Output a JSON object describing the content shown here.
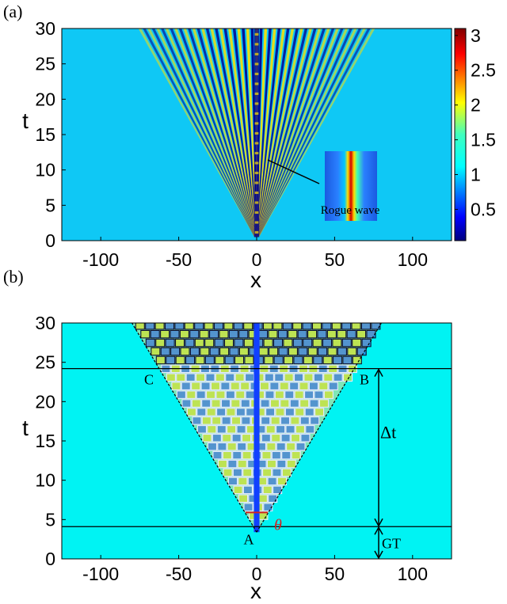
{
  "chart_data": [
    {
      "type": "heatmap",
      "panel_label": "(a)",
      "xlabel": "x",
      "ylabel": "t",
      "xlim": [
        -125,
        125
      ],
      "ylim": [
        0,
        30
      ],
      "xticks": [
        -100,
        -50,
        0,
        50,
        100
      ],
      "yticks": [
        0,
        5,
        10,
        15,
        20,
        25,
        30
      ],
      "colorbar": {
        "min": 0.05,
        "max": 3.1,
        "ticks": [
          0.5,
          1,
          1.5,
          2,
          2.5,
          3
        ]
      },
      "background_value": 1,
      "wedge_half_width_at_t30": 75,
      "inset": {
        "label": "Rogue wave",
        "arrow_from": [
          5,
          14
        ]
      }
    },
    {
      "type": "heatmap",
      "panel_label": "(b)",
      "xlabel": "x",
      "ylabel": "t",
      "xlim": [
        -125,
        125
      ],
      "ylim": [
        0,
        30
      ],
      "xticks": [
        -100,
        -50,
        0,
        50,
        100
      ],
      "yticks": [
        0,
        5,
        10,
        15,
        20,
        25,
        30
      ],
      "lines_t": [
        4.1,
        24.2
      ],
      "points": [
        {
          "label": "A",
          "x": 0,
          "t": 4.1
        },
        {
          "label": "B",
          "x": 63,
          "t": 24.2
        },
        {
          "label": "C",
          "x": -63,
          "t": 24.2
        }
      ],
      "wedge_half_width_at_t30": 80,
      "annotations": {
        "delta_t": "Δt",
        "gt": "GT",
        "theta": "θ"
      }
    }
  ],
  "colors": {
    "background_field": "#0fc8f5",
    "background_field_b": "#00f3f3",
    "stripe_low": "#00008f",
    "stripe_high": "#ffe000",
    "rogue_peak": "#cc0000",
    "theta_color": "#d42020"
  }
}
